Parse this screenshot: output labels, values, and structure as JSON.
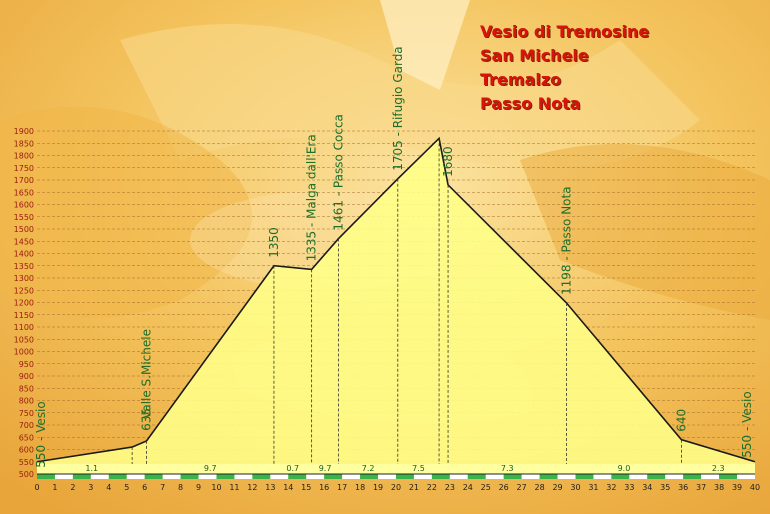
{
  "title_lines": [
    "Vesio di Tremosine",
    "San Michele",
    "Tremalzo",
    "Passo Nota"
  ],
  "colors": {
    "title": "#d8140c",
    "axis_labels": "#9a1a10",
    "waypoint_labels": "#1f6e2a",
    "fill": "#ffff88",
    "profile": "#1a1a1a"
  },
  "chart_data": {
    "type": "area",
    "ylim": [
      500,
      1900
    ],
    "xlim": [
      0,
      40
    ],
    "yticks": [
      500,
      550,
      600,
      650,
      700,
      750,
      800,
      850,
      900,
      950,
      1000,
      1050,
      1100,
      1150,
      1200,
      1250,
      1300,
      1350,
      1400,
      1450,
      1500,
      1550,
      1600,
      1650,
      1700,
      1750,
      1800,
      1850,
      1900
    ],
    "xticks": [
      0,
      1,
      2,
      3,
      4,
      5,
      6,
      7,
      8,
      9,
      10,
      11,
      12,
      13,
      14,
      15,
      16,
      17,
      18,
      19,
      20,
      21,
      22,
      23,
      24,
      25,
      26,
      27,
      28,
      29,
      30,
      31,
      32,
      33,
      34,
      35,
      36,
      37,
      38,
      39,
      40
    ],
    "profile": [
      {
        "x": 0,
        "y": 550
      },
      {
        "x": 5.3,
        "y": 610
      },
      {
        "x": 6.1,
        "y": 635
      },
      {
        "x": 13.2,
        "y": 1350
      },
      {
        "x": 15.3,
        "y": 1335
      },
      {
        "x": 16.8,
        "y": 1461
      },
      {
        "x": 20.1,
        "y": 1705
      },
      {
        "x": 22.4,
        "y": 1870
      },
      {
        "x": 22.9,
        "y": 1680
      },
      {
        "x": 29.5,
        "y": 1198
      },
      {
        "x": 35.9,
        "y": 640
      },
      {
        "x": 40,
        "y": 550
      }
    ],
    "waypoints": [
      {
        "x": 0,
        "y": 550,
        "label": "550 - Vesio"
      },
      {
        "x": 6.1,
        "y": 635,
        "label": "Valle S.Michele"
      },
      {
        "x": 6.1,
        "y": 635,
        "label": "635"
      },
      {
        "x": 13.2,
        "y": 1350,
        "label": "1350"
      },
      {
        "x": 15.3,
        "y": 1335,
        "label": "1335 - Malga dall'Era"
      },
      {
        "x": 16.8,
        "y": 1461,
        "label": "1461 - Passo Cocca"
      },
      {
        "x": 20.1,
        "y": 1705,
        "label": "1705 - Rifugio Garda"
      },
      {
        "x": 22.9,
        "y": 1680,
        "label": "1680"
      },
      {
        "x": 29.5,
        "y": 1198,
        "label": "1198 - Passo Nota"
      },
      {
        "x": 35.9,
        "y": 640,
        "label": "640"
      },
      {
        "x": 40,
        "y": 550,
        "label": "550 - Vesio"
      }
    ],
    "segments": [
      {
        "from": 0,
        "to": 6.1,
        "label": "1.1"
      },
      {
        "from": 6.1,
        "to": 13.2,
        "label": "9.7"
      },
      {
        "from": 13.2,
        "to": 15.3,
        "label": "0.7"
      },
      {
        "from": 15.3,
        "to": 16.8,
        "label": "9.7"
      },
      {
        "from": 16.8,
        "to": 20.1,
        "label": "7.2"
      },
      {
        "from": 20.1,
        "to": 22.4,
        "label": "7.5"
      },
      {
        "from": 22.9,
        "to": 29.5,
        "label": "7.3"
      },
      {
        "from": 29.5,
        "to": 35.9,
        "label": "9.0"
      },
      {
        "from": 35.9,
        "to": 40,
        "label": "2.3"
      }
    ],
    "grid": true
  }
}
